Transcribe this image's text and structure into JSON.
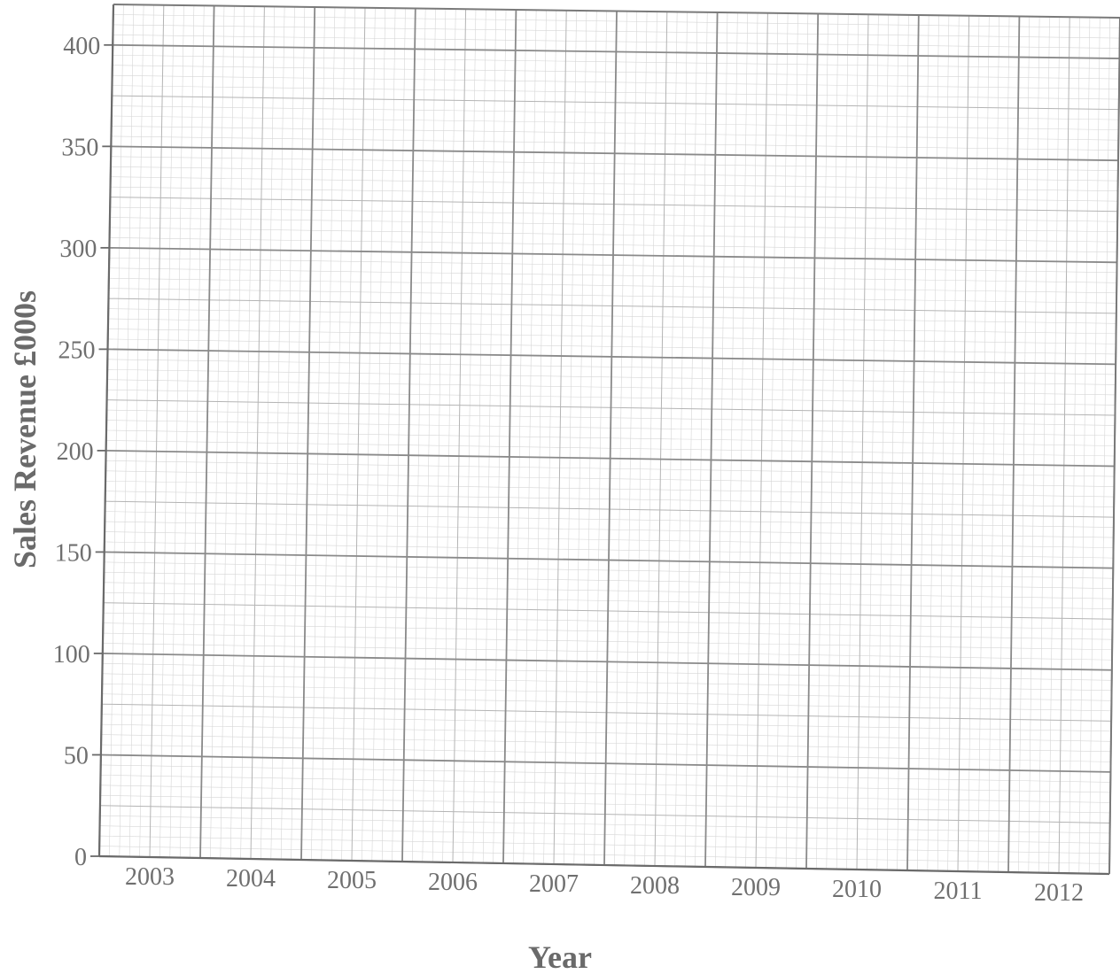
{
  "chart_data": {
    "type": "line",
    "title": "",
    "xlabel": "Year",
    "ylabel": "Sales Revenue  £000s",
    "categories": [
      "2003",
      "2004",
      "2005",
      "2006",
      "2007",
      "2008",
      "2009",
      "2010",
      "2011",
      "2012"
    ],
    "yticks": [
      0,
      50,
      100,
      150,
      200,
      250,
      300,
      350,
      400
    ],
    "ylim": [
      0,
      420
    ],
    "series": [],
    "grid": true,
    "grid_style": "graph paper with major, medium and minor lines",
    "legend": "none"
  },
  "colors": {
    "major_grid": "#8a8a8a",
    "medium_grid": "#b4b4b4",
    "minor_grid": "#d6d6d6",
    "text": "#6f6f6f"
  }
}
